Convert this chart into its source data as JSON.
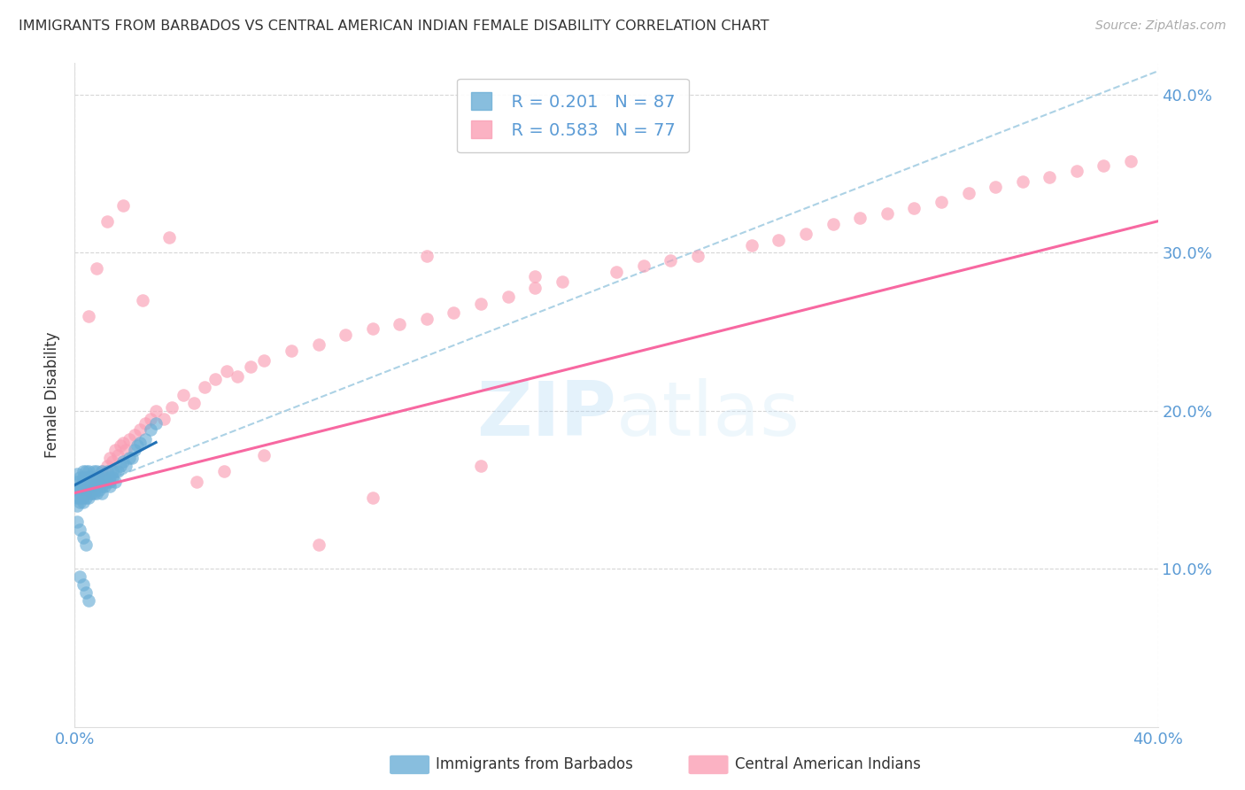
{
  "title": "IMMIGRANTS FROM BARBADOS VS CENTRAL AMERICAN INDIAN FEMALE DISABILITY CORRELATION CHART",
  "source": "Source: ZipAtlas.com",
  "ylabel": "Female Disability",
  "xmin": 0.0,
  "xmax": 0.4,
  "ymin": 0.0,
  "ymax": 0.42,
  "watermark": "ZIPatlas",
  "legend_r1": "R = 0.201",
  "legend_n1": "N = 87",
  "legend_r2": "R = 0.583",
  "legend_n2": "N = 77",
  "blue_color": "#6baed6",
  "pink_color": "#fa9fb5",
  "blue_line_color": "#2171b5",
  "pink_line_color": "#f768a1",
  "blue_dash_color": "#9ecae1",
  "axis_color": "#5b9bd5",
  "title_color": "#333333",
  "label1": "Immigrants from Barbados",
  "label2": "Central American Indians",
  "blue_scatter_x": [
    0.001,
    0.001,
    0.001,
    0.001,
    0.001,
    0.002,
    0.002,
    0.002,
    0.002,
    0.002,
    0.002,
    0.003,
    0.003,
    0.003,
    0.003,
    0.003,
    0.003,
    0.003,
    0.003,
    0.003,
    0.004,
    0.004,
    0.004,
    0.004,
    0.004,
    0.004,
    0.004,
    0.005,
    0.005,
    0.005,
    0.005,
    0.005,
    0.005,
    0.005,
    0.006,
    0.006,
    0.006,
    0.006,
    0.006,
    0.007,
    0.007,
    0.007,
    0.007,
    0.007,
    0.008,
    0.008,
    0.008,
    0.008,
    0.009,
    0.009,
    0.009,
    0.01,
    0.01,
    0.01,
    0.01,
    0.011,
    0.011,
    0.011,
    0.012,
    0.012,
    0.013,
    0.013,
    0.013,
    0.014,
    0.014,
    0.015,
    0.015,
    0.016,
    0.017,
    0.018,
    0.019,
    0.02,
    0.021,
    0.022,
    0.023,
    0.024,
    0.026,
    0.028,
    0.03,
    0.001,
    0.002,
    0.003,
    0.004,
    0.002,
    0.003,
    0.004,
    0.005
  ],
  "blue_scatter_y": [
    0.15,
    0.145,
    0.14,
    0.155,
    0.16,
    0.15,
    0.148,
    0.152,
    0.145,
    0.142,
    0.158,
    0.155,
    0.15,
    0.148,
    0.145,
    0.142,
    0.155,
    0.158,
    0.162,
    0.148,
    0.155,
    0.15,
    0.148,
    0.145,
    0.152,
    0.158,
    0.162,
    0.155,
    0.15,
    0.148,
    0.145,
    0.152,
    0.158,
    0.162,
    0.155,
    0.15,
    0.148,
    0.152,
    0.158,
    0.155,
    0.15,
    0.148,
    0.162,
    0.158,
    0.155,
    0.152,
    0.148,
    0.162,
    0.155,
    0.15,
    0.158,
    0.155,
    0.152,
    0.148,
    0.162,
    0.155,
    0.152,
    0.158,
    0.155,
    0.162,
    0.158,
    0.155,
    0.152,
    0.158,
    0.162,
    0.155,
    0.162,
    0.162,
    0.165,
    0.168,
    0.165,
    0.17,
    0.17,
    0.175,
    0.178,
    0.18,
    0.182,
    0.188,
    0.192,
    0.13,
    0.125,
    0.12,
    0.115,
    0.095,
    0.09,
    0.085,
    0.08
  ],
  "pink_scatter_x": [
    0.003,
    0.004,
    0.005,
    0.006,
    0.007,
    0.008,
    0.009,
    0.01,
    0.011,
    0.012,
    0.013,
    0.014,
    0.015,
    0.016,
    0.017,
    0.018,
    0.019,
    0.02,
    0.022,
    0.024,
    0.026,
    0.028,
    0.03,
    0.033,
    0.036,
    0.04,
    0.044,
    0.048,
    0.052,
    0.056,
    0.06,
    0.065,
    0.07,
    0.08,
    0.09,
    0.1,
    0.11,
    0.12,
    0.13,
    0.14,
    0.15,
    0.16,
    0.17,
    0.18,
    0.2,
    0.21,
    0.22,
    0.23,
    0.25,
    0.26,
    0.27,
    0.28,
    0.29,
    0.3,
    0.31,
    0.32,
    0.33,
    0.34,
    0.35,
    0.36,
    0.37,
    0.38,
    0.39,
    0.005,
    0.008,
    0.012,
    0.018,
    0.025,
    0.035,
    0.045,
    0.055,
    0.07,
    0.09,
    0.11,
    0.13,
    0.15,
    0.17
  ],
  "pink_scatter_y": [
    0.15,
    0.148,
    0.155,
    0.148,
    0.152,
    0.158,
    0.155,
    0.162,
    0.158,
    0.165,
    0.17,
    0.168,
    0.175,
    0.172,
    0.178,
    0.18,
    0.175,
    0.182,
    0.185,
    0.188,
    0.192,
    0.195,
    0.2,
    0.195,
    0.202,
    0.21,
    0.205,
    0.215,
    0.22,
    0.225,
    0.222,
    0.228,
    0.232,
    0.238,
    0.242,
    0.248,
    0.252,
    0.255,
    0.258,
    0.262,
    0.268,
    0.272,
    0.278,
    0.282,
    0.288,
    0.292,
    0.295,
    0.298,
    0.305,
    0.308,
    0.312,
    0.318,
    0.322,
    0.325,
    0.328,
    0.332,
    0.338,
    0.342,
    0.345,
    0.348,
    0.352,
    0.355,
    0.358,
    0.26,
    0.29,
    0.32,
    0.33,
    0.27,
    0.31,
    0.155,
    0.162,
    0.172,
    0.115,
    0.145,
    0.298,
    0.165,
    0.285
  ],
  "blue_line_x": [
    0.0,
    0.03
  ],
  "blue_line_y": [
    0.153,
    0.18
  ],
  "pink_line_x": [
    0.0,
    0.4
  ],
  "pink_line_y": [
    0.148,
    0.32
  ],
  "dash_line_x": [
    0.0,
    0.4
  ],
  "dash_line_y": [
    0.148,
    0.415
  ]
}
